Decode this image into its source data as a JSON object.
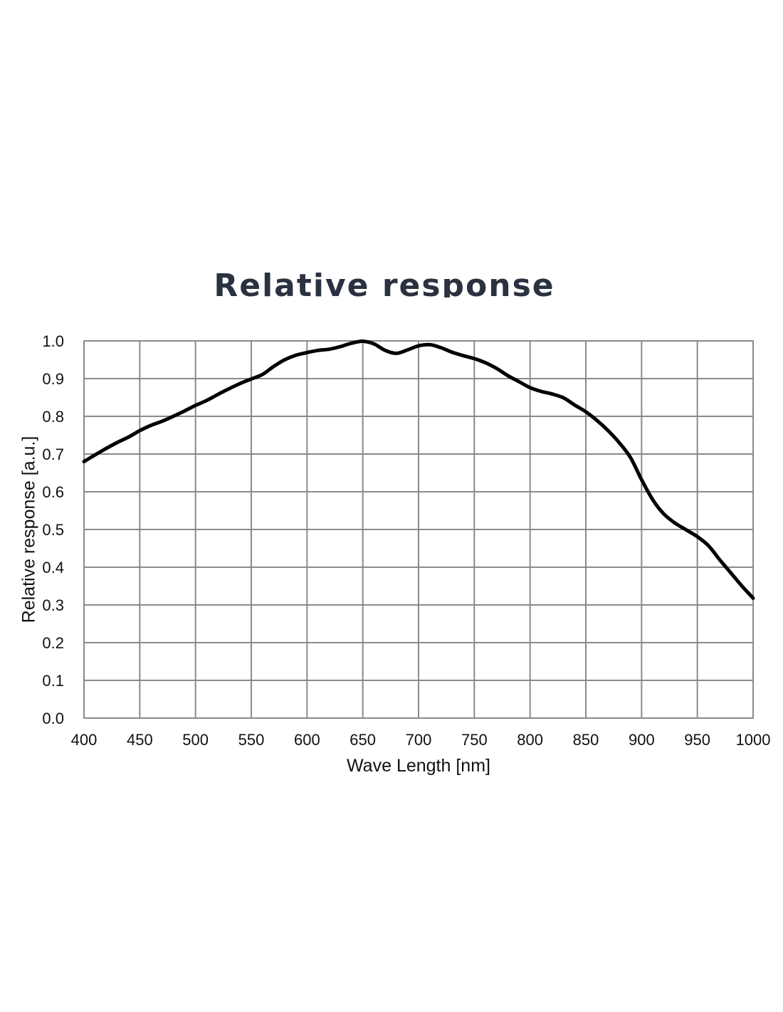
{
  "page": {
    "title": "Relative response"
  },
  "chart_data": {
    "type": "line",
    "title": "Relative response",
    "xlabel": "Wave Length [nm]",
    "ylabel": "Relative response [a.u.]",
    "xlim": [
      400,
      1000
    ],
    "ylim": [
      0.0,
      1.0
    ],
    "x_ticks": [
      "400",
      "450",
      "500",
      "550",
      "600",
      "650",
      "700",
      "750",
      "800",
      "850",
      "900",
      "950",
      "1000"
    ],
    "y_ticks": [
      "0.0",
      "0.1",
      "0.2",
      "0.3",
      "0.4",
      "0.5",
      "0.6",
      "0.7",
      "0.8",
      "0.9",
      "1.0"
    ],
    "grid": true,
    "colors": {
      "line": "#000000",
      "grid": "#8a8a8a",
      "title": "#2a3140"
    },
    "series": [
      {
        "x": [
          400,
          410,
          420,
          430,
          440,
          450,
          460,
          470,
          480,
          490,
          500,
          510,
          520,
          530,
          540,
          550,
          560,
          570,
          580,
          590,
          600,
          610,
          620,
          630,
          640,
          650,
          660,
          670,
          680,
          690,
          700,
          710,
          720,
          730,
          740,
          750,
          760,
          770,
          780,
          790,
          800,
          810,
          820,
          830,
          840,
          850,
          860,
          870,
          880,
          890,
          900,
          910,
          920,
          930,
          940,
          950,
          960,
          970,
          980,
          990,
          1000
        ],
        "values": [
          0.68,
          0.698,
          0.715,
          0.731,
          0.745,
          0.762,
          0.776,
          0.787,
          0.8,
          0.814,
          0.829,
          0.842,
          0.858,
          0.873,
          0.887,
          0.899,
          0.911,
          0.932,
          0.95,
          0.962,
          0.969,
          0.975,
          0.978,
          0.985,
          0.994,
          0.999,
          0.992,
          0.975,
          0.967,
          0.976,
          0.987,
          0.99,
          0.982,
          0.97,
          0.961,
          0.953,
          0.942,
          0.927,
          0.908,
          0.892,
          0.876,
          0.866,
          0.859,
          0.849,
          0.83,
          0.812,
          0.789,
          0.762,
          0.73,
          0.691,
          0.632,
          0.579,
          0.541,
          0.517,
          0.499,
          0.481,
          0.457,
          0.42,
          0.385,
          0.35,
          0.318
        ]
      }
    ]
  }
}
